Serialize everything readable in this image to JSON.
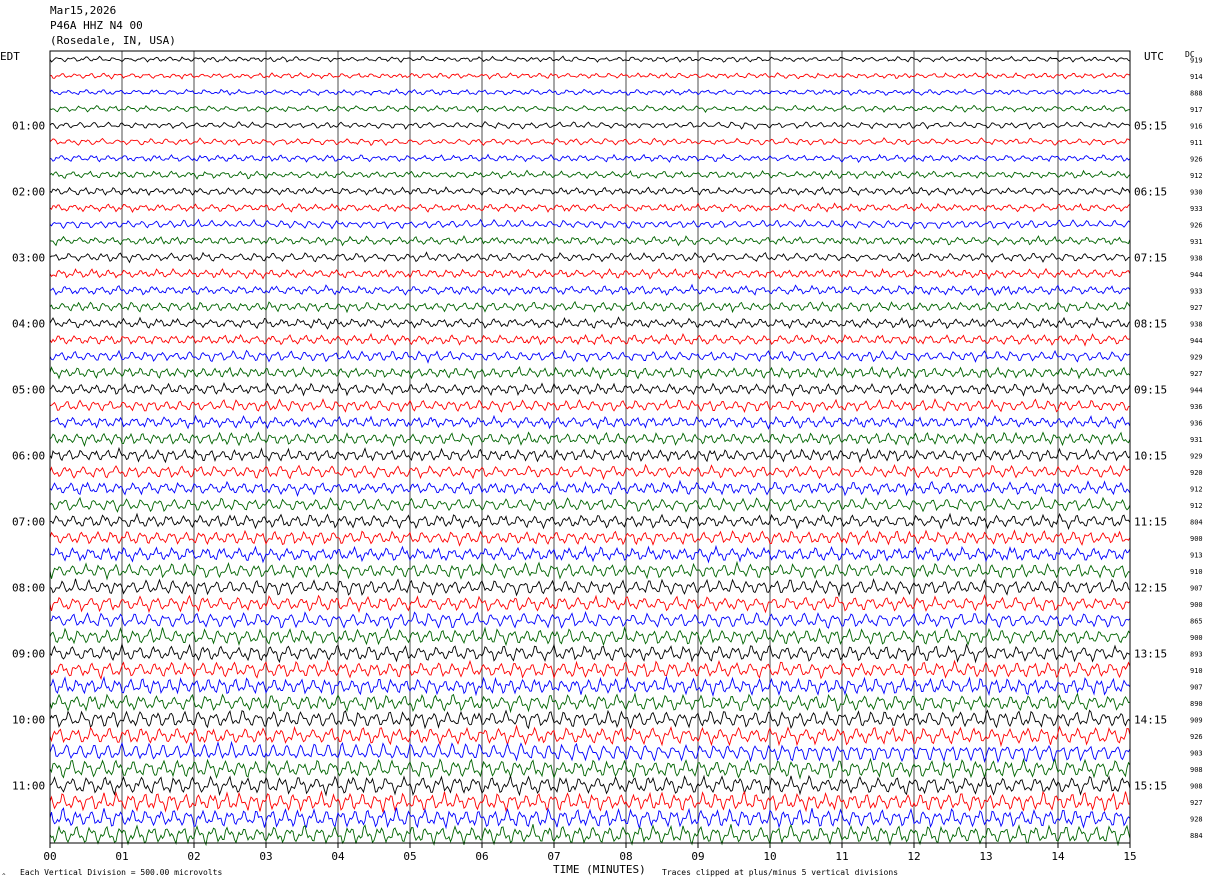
{
  "header": {
    "date": "Mar15,2026",
    "station": "P46A HHZ N4 00",
    "location": "(Rosedale, IN, USA)"
  },
  "left_timezone": "EDT",
  "right_timezone": "UTC",
  "dc_label": "DC",
  "footer": {
    "scale_note": "Each Vertical Division =  500.00 microvolts",
    "clip_note": "Traces clipped at plus/minus 5 vertical divisions",
    "xlabel": "TIME (MINUTES)"
  },
  "colors": {
    "trace_cycle": [
      "#000000",
      "#ff0000",
      "#0000ff",
      "#006400"
    ],
    "grid": "#000000"
  },
  "chart_data": {
    "type": "line",
    "xlabel": "TIME (MINUTES)",
    "xlim": [
      0,
      15
    ],
    "x_ticks": [
      "00",
      "01",
      "02",
      "03",
      "04",
      "05",
      "06",
      "07",
      "08",
      "09",
      "10",
      "11",
      "12",
      "13",
      "14",
      "15"
    ],
    "rows_per_hour": 4,
    "row_count": 48,
    "left_hour_labels": [
      "01:00",
      "02:00",
      "03:00",
      "04:00",
      "05:00",
      "06:00",
      "07:00",
      "08:00",
      "09:00",
      "10:00",
      "11:00"
    ],
    "right_hour_labels": [
      "05:15",
      "06:15",
      "07:15",
      "08:15",
      "09:15",
      "10:15",
      "11:15",
      "12:15",
      "13:15",
      "14:15",
      "15:15"
    ],
    "dc_offsets": [
      "919",
      "914",
      "888",
      "917",
      "916",
      "911",
      "926",
      "912",
      "930",
      "933",
      "926",
      "931",
      "938",
      "944",
      "933",
      "927",
      "938",
      "944",
      "929",
      "927",
      "944",
      "936",
      "936",
      "931",
      "929",
      "920",
      "912",
      "912",
      "804",
      "900",
      "913",
      "910",
      "907",
      "900",
      "865",
      "900",
      "893",
      "910",
      "907",
      "890",
      "909",
      "926",
      "903",
      "908",
      "908",
      "927",
      "928",
      "884"
    ]
  }
}
